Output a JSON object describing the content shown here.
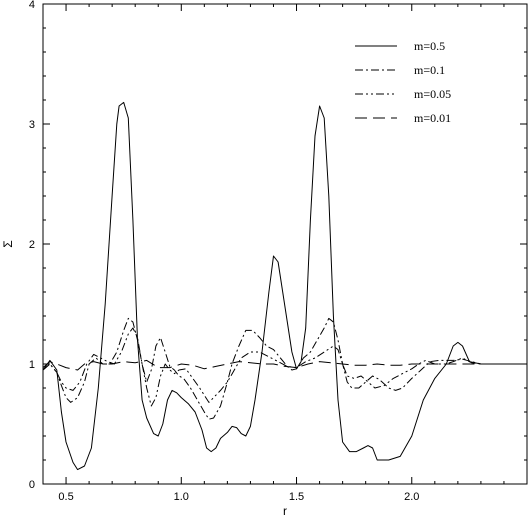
{
  "chart_data": {
    "type": "line",
    "xlabel": "r",
    "ylabel": "Σ",
    "xlim": [
      0.4,
      2.5
    ],
    "ylim": [
      0,
      4
    ],
    "x_ticks": [
      {
        "value": 0.5,
        "label": "0.5"
      },
      {
        "value": 1.0,
        "label": "1.0"
      },
      {
        "value": 1.5,
        "label": "1.5"
      },
      {
        "value": 2.0,
        "label": "2.0"
      }
    ],
    "y_ticks": [
      {
        "value": 0,
        "label": "0"
      },
      {
        "value": 1,
        "label": "1"
      },
      {
        "value": 2,
        "label": "2"
      },
      {
        "value": 3,
        "label": "3"
      },
      {
        "value": 4,
        "label": "4"
      }
    ],
    "grid": false,
    "legend_position": "top-right",
    "series": [
      {
        "name": "m=0.5",
        "dash": "solid",
        "points": [
          [
            0.4,
            0.95
          ],
          [
            0.43,
            1.03
          ],
          [
            0.46,
            0.95
          ],
          [
            0.48,
            0.6
          ],
          [
            0.5,
            0.35
          ],
          [
            0.53,
            0.18
          ],
          [
            0.55,
            0.12
          ],
          [
            0.58,
            0.15
          ],
          [
            0.61,
            0.3
          ],
          [
            0.64,
            0.8
          ],
          [
            0.67,
            1.5
          ],
          [
            0.7,
            2.4
          ],
          [
            0.72,
            3.0
          ],
          [
            0.73,
            3.15
          ],
          [
            0.75,
            3.18
          ],
          [
            0.77,
            3.05
          ],
          [
            0.79,
            2.2
          ],
          [
            0.81,
            1.2
          ],
          [
            0.83,
            0.7
          ],
          [
            0.85,
            0.55
          ],
          [
            0.88,
            0.42
          ],
          [
            0.9,
            0.4
          ],
          [
            0.92,
            0.5
          ],
          [
            0.94,
            0.7
          ],
          [
            0.96,
            0.78
          ],
          [
            0.98,
            0.76
          ],
          [
            1.0,
            0.72
          ],
          [
            1.03,
            0.67
          ],
          [
            1.06,
            0.6
          ],
          [
            1.09,
            0.45
          ],
          [
            1.11,
            0.3
          ],
          [
            1.13,
            0.27
          ],
          [
            1.15,
            0.3
          ],
          [
            1.17,
            0.38
          ],
          [
            1.2,
            0.43
          ],
          [
            1.22,
            0.48
          ],
          [
            1.24,
            0.47
          ],
          [
            1.26,
            0.42
          ],
          [
            1.28,
            0.4
          ],
          [
            1.3,
            0.48
          ],
          [
            1.32,
            0.7
          ],
          [
            1.35,
            1.1
          ],
          [
            1.38,
            1.6
          ],
          [
            1.4,
            1.9
          ],
          [
            1.42,
            1.85
          ],
          [
            1.44,
            1.6
          ],
          [
            1.46,
            1.35
          ],
          [
            1.48,
            1.1
          ],
          [
            1.5,
            0.96
          ],
          [
            1.52,
            1.02
          ],
          [
            1.54,
            1.3
          ],
          [
            1.56,
            2.2
          ],
          [
            1.58,
            2.9
          ],
          [
            1.6,
            3.15
          ],
          [
            1.62,
            3.05
          ],
          [
            1.64,
            2.4
          ],
          [
            1.66,
            1.4
          ],
          [
            1.68,
            0.7
          ],
          [
            1.7,
            0.35
          ],
          [
            1.73,
            0.27
          ],
          [
            1.76,
            0.27
          ],
          [
            1.79,
            0.3
          ],
          [
            1.81,
            0.32
          ],
          [
            1.83,
            0.3
          ],
          [
            1.85,
            0.2
          ],
          [
            1.9,
            0.2
          ],
          [
            1.95,
            0.23
          ],
          [
            2.0,
            0.4
          ],
          [
            2.05,
            0.7
          ],
          [
            2.1,
            0.88
          ],
          [
            2.15,
            1.0
          ],
          [
            2.18,
            1.15
          ],
          [
            2.2,
            1.18
          ],
          [
            2.22,
            1.15
          ],
          [
            2.25,
            1.02
          ],
          [
            2.3,
            1.0
          ],
          [
            2.5,
            1.0
          ]
        ]
      },
      {
        "name": "m=0.1",
        "dash": "dashdot",
        "points": [
          [
            0.4,
            0.95
          ],
          [
            0.43,
            1.0
          ],
          [
            0.46,
            0.93
          ],
          [
            0.48,
            0.82
          ],
          [
            0.5,
            0.72
          ],
          [
            0.52,
            0.68
          ],
          [
            0.55,
            0.72
          ],
          [
            0.58,
            0.85
          ],
          [
            0.6,
            1.0
          ],
          [
            0.63,
            1.05
          ],
          [
            0.66,
            1.0
          ],
          [
            0.69,
            1.0
          ],
          [
            0.72,
            1.1
          ],
          [
            0.75,
            1.28
          ],
          [
            0.77,
            1.38
          ],
          [
            0.79,
            1.35
          ],
          [
            0.81,
            1.2
          ],
          [
            0.83,
            1.0
          ],
          [
            0.85,
            0.85
          ],
          [
            0.87,
            0.95
          ],
          [
            0.89,
            1.15
          ],
          [
            0.91,
            1.22
          ],
          [
            0.93,
            1.1
          ],
          [
            0.95,
            0.98
          ],
          [
            0.97,
            0.95
          ],
          [
            0.99,
            0.9
          ],
          [
            1.01,
            0.88
          ],
          [
            1.04,
            0.8
          ],
          [
            1.07,
            0.7
          ],
          [
            1.1,
            0.6
          ],
          [
            1.12,
            0.54
          ],
          [
            1.14,
            0.55
          ],
          [
            1.17,
            0.65
          ],
          [
            1.2,
            0.85
          ],
          [
            1.22,
            1.0
          ],
          [
            1.25,
            1.15
          ],
          [
            1.28,
            1.28
          ],
          [
            1.31,
            1.28
          ],
          [
            1.34,
            1.22
          ],
          [
            1.37,
            1.15
          ],
          [
            1.4,
            1.12
          ],
          [
            1.43,
            1.05
          ],
          [
            1.46,
            0.98
          ],
          [
            1.48,
            0.95
          ],
          [
            1.5,
            0.96
          ],
          [
            1.53,
            1.05
          ],
          [
            1.56,
            1.1
          ],
          [
            1.59,
            1.2
          ],
          [
            1.62,
            1.3
          ],
          [
            1.64,
            1.38
          ],
          [
            1.66,
            1.35
          ],
          [
            1.68,
            1.2
          ],
          [
            1.7,
            1.0
          ],
          [
            1.72,
            0.85
          ],
          [
            1.74,
            0.8
          ],
          [
            1.77,
            0.8
          ],
          [
            1.8,
            0.85
          ],
          [
            1.83,
            0.9
          ],
          [
            1.86,
            0.87
          ],
          [
            1.9,
            0.8
          ],
          [
            1.93,
            0.78
          ],
          [
            1.96,
            0.8
          ],
          [
            2.0,
            0.88
          ],
          [
            2.04,
            0.95
          ],
          [
            2.08,
            1.02
          ],
          [
            2.12,
            1.03
          ],
          [
            2.18,
            1.03
          ],
          [
            2.22,
            1.04
          ],
          [
            2.26,
            1.02
          ],
          [
            2.3,
            1.0
          ],
          [
            2.5,
            1.0
          ]
        ]
      },
      {
        "name": "m=0.05",
        "dash": "dashdotdot",
        "points": [
          [
            0.4,
            0.95
          ],
          [
            0.43,
            1.0
          ],
          [
            0.46,
            0.93
          ],
          [
            0.48,
            0.85
          ],
          [
            0.5,
            0.8
          ],
          [
            0.53,
            0.78
          ],
          [
            0.56,
            0.85
          ],
          [
            0.59,
            1.0
          ],
          [
            0.62,
            1.08
          ],
          [
            0.65,
            1.05
          ],
          [
            0.68,
            1.02
          ],
          [
            0.71,
            1.0
          ],
          [
            0.74,
            1.1
          ],
          [
            0.77,
            1.25
          ],
          [
            0.79,
            1.3
          ],
          [
            0.81,
            1.22
          ],
          [
            0.83,
            1.0
          ],
          [
            0.85,
            0.8
          ],
          [
            0.87,
            0.65
          ],
          [
            0.89,
            0.72
          ],
          [
            0.91,
            0.9
          ],
          [
            0.93,
            1.0
          ],
          [
            0.95,
            0.95
          ],
          [
            0.97,
            0.92
          ],
          [
            0.99,
            0.95
          ],
          [
            1.02,
            0.96
          ],
          [
            1.05,
            0.88
          ],
          [
            1.08,
            0.8
          ],
          [
            1.1,
            0.74
          ],
          [
            1.12,
            0.68
          ],
          [
            1.14,
            0.72
          ],
          [
            1.17,
            0.78
          ],
          [
            1.2,
            0.85
          ],
          [
            1.23,
            0.95
          ],
          [
            1.26,
            1.05
          ],
          [
            1.3,
            1.1
          ],
          [
            1.34,
            1.1
          ],
          [
            1.38,
            1.06
          ],
          [
            1.42,
            1.02
          ],
          [
            1.46,
            0.98
          ],
          [
            1.5,
            0.97
          ],
          [
            1.54,
            1.02
          ],
          [
            1.58,
            1.05
          ],
          [
            1.62,
            1.1
          ],
          [
            1.66,
            1.15
          ],
          [
            1.68,
            1.12
          ],
          [
            1.7,
            1.0
          ],
          [
            1.72,
            0.9
          ],
          [
            1.75,
            0.88
          ],
          [
            1.78,
            0.9
          ],
          [
            1.81,
            0.85
          ],
          [
            1.84,
            0.8
          ],
          [
            1.88,
            0.82
          ],
          [
            1.92,
            0.88
          ],
          [
            1.96,
            0.92
          ],
          [
            2.0,
            0.96
          ],
          [
            2.03,
            1.0
          ],
          [
            2.06,
            1.03
          ],
          [
            2.1,
            1.0
          ],
          [
            2.15,
            1.0
          ],
          [
            2.18,
            1.02
          ],
          [
            2.22,
            1.05
          ],
          [
            2.26,
            1.01
          ],
          [
            2.3,
            1.0
          ],
          [
            2.5,
            1.0
          ]
        ]
      },
      {
        "name": "m=0.01",
        "dash": "longdash",
        "points": [
          [
            0.4,
            0.97
          ],
          [
            0.43,
            1.02
          ],
          [
            0.46,
            1.0
          ],
          [
            0.5,
            0.97
          ],
          [
            0.55,
            0.95
          ],
          [
            0.58,
            1.0
          ],
          [
            0.62,
            1.02
          ],
          [
            0.66,
            1.0
          ],
          [
            0.7,
            1.0
          ],
          [
            0.75,
            1.02
          ],
          [
            0.8,
            1.01
          ],
          [
            0.85,
            1.03
          ],
          [
            0.9,
            0.97
          ],
          [
            0.95,
            0.97
          ],
          [
            1.0,
            1.0
          ],
          [
            1.05,
            0.99
          ],
          [
            1.1,
            0.96
          ],
          [
            1.15,
            0.98
          ],
          [
            1.2,
            1.0
          ],
          [
            1.25,
            1.02
          ],
          [
            1.3,
            1.01
          ],
          [
            1.35,
            1.0
          ],
          [
            1.4,
            1.0
          ],
          [
            1.45,
            0.98
          ],
          [
            1.5,
            0.97
          ],
          [
            1.55,
            1.0
          ],
          [
            1.6,
            1.02
          ],
          [
            1.65,
            1.01
          ],
          [
            1.7,
            1.0
          ],
          [
            1.75,
            0.99
          ],
          [
            1.8,
            0.99
          ],
          [
            1.85,
            1.0
          ],
          [
            1.9,
            0.99
          ],
          [
            1.95,
            0.99
          ],
          [
            2.0,
            1.0
          ],
          [
            2.05,
            1.0
          ],
          [
            2.1,
            1.0
          ],
          [
            2.2,
            1.0
          ],
          [
            2.3,
            1.0
          ],
          [
            2.5,
            1.0
          ]
        ]
      }
    ]
  }
}
